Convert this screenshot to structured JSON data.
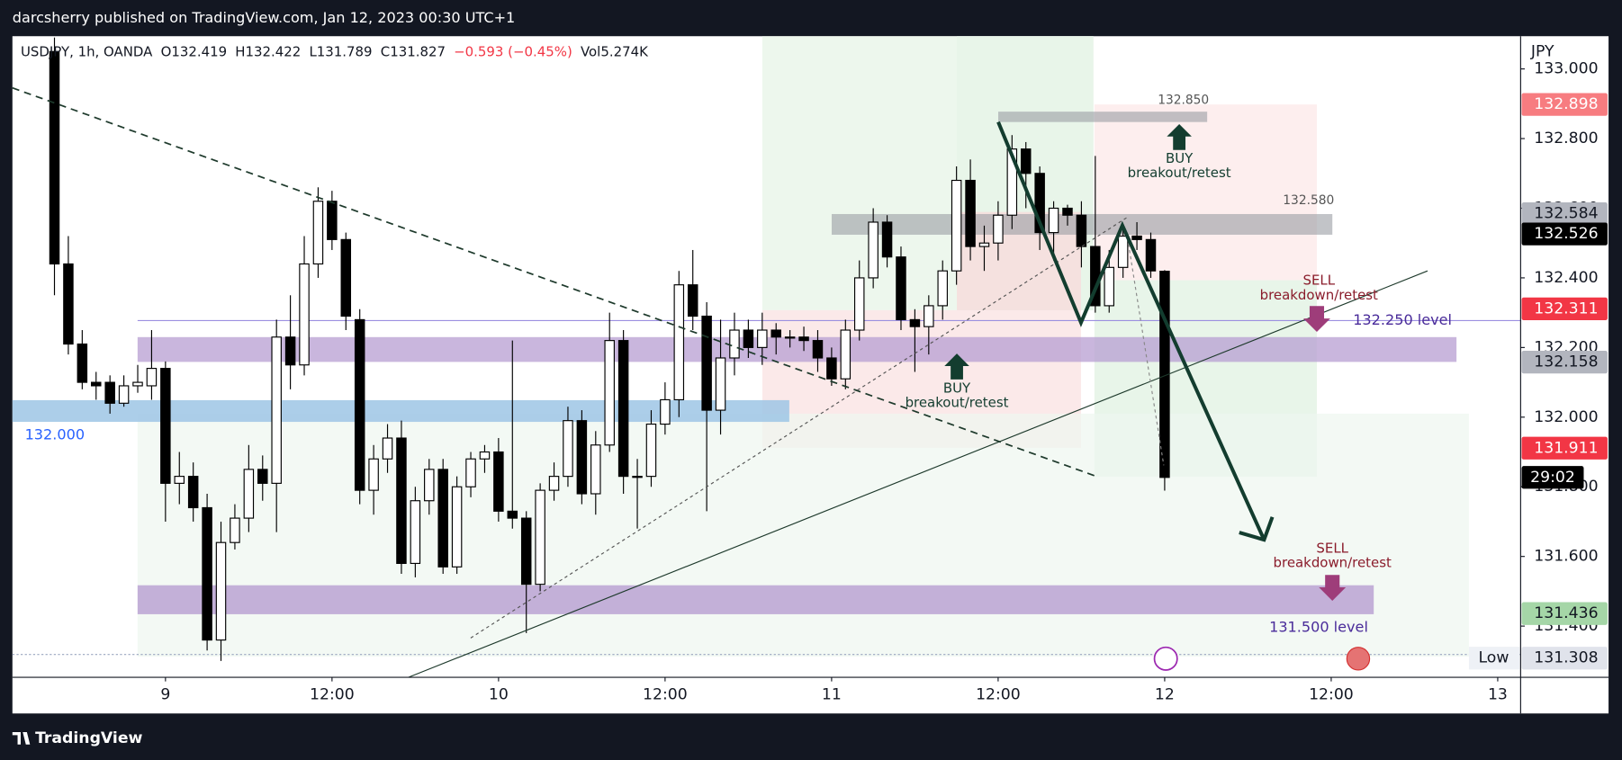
{
  "top_bar": {
    "text": "darcsherry published on TradingView.com, Jan 12, 2023 00:30 UTC+1"
  },
  "chart_data": {
    "type": "candlestick",
    "header": [
      "USDJPY, 1h, OANDA",
      "O132.419",
      "H132.422",
      "L131.789",
      "C131.827",
      "−0.593 (−0.45%)",
      "Vol5.274K"
    ],
    "currency": "JPY",
    "x": [
      -8,
      -7,
      -6,
      -5,
      -4,
      -3,
      -2,
      -1,
      0,
      1,
      2,
      3,
      4,
      5,
      6,
      7,
      8,
      9,
      10,
      11,
      12,
      13,
      14,
      15,
      16,
      17,
      18,
      19,
      20,
      21,
      22,
      23,
      24,
      25,
      26,
      27,
      28,
      29,
      30,
      31,
      32,
      33,
      34,
      35,
      36,
      37,
      38,
      39,
      40,
      41,
      42,
      43,
      44,
      45,
      46,
      47,
      48,
      49,
      50,
      51,
      52,
      53,
      54,
      55,
      56,
      57,
      58,
      59,
      60,
      61,
      62,
      63,
      64,
      65,
      66,
      67,
      68,
      69,
      70,
      71,
      72
    ],
    "open": [
      133.05,
      132.44,
      132.21,
      132.1,
      132.1,
      132.04,
      132.09,
      132.09,
      132.14,
      131.81,
      131.83,
      131.74,
      131.36,
      131.64,
      131.71,
      131.85,
      131.81,
      132.23,
      132.15,
      132.44,
      132.62,
      132.51,
      132.28,
      131.79,
      131.88,
      131.94,
      131.58,
      131.76,
      131.85,
      131.57,
      131.8,
      131.88,
      131.9,
      131.73,
      131.71,
      131.52,
      131.79,
      131.83,
      131.99,
      131.78,
      131.92,
      132.22,
      131.83,
      131.83,
      131.98,
      132.05,
      132.38,
      132.29,
      132.02,
      132.17,
      132.25,
      132.2,
      132.25,
      132.23,
      132.23,
      132.22,
      132.17,
      132.11,
      132.25,
      132.4,
      132.56,
      132.46,
      132.28,
      132.26,
      132.32,
      132.42,
      132.68,
      132.49,
      132.5,
      132.58,
      132.77,
      132.7,
      132.53,
      132.6,
      132.58,
      132.49,
      132.32,
      132.43,
      132.52,
      132.51,
      132.419
    ],
    "high": [
      133.09,
      132.52,
      132.25,
      132.13,
      132.12,
      132.12,
      132.15,
      132.25,
      132.16,
      131.9,
      131.87,
      131.78,
      131.7,
      131.75,
      131.92,
      131.89,
      132.28,
      132.35,
      132.52,
      132.66,
      132.65,
      132.53,
      132.31,
      131.92,
      131.98,
      131.99,
      131.8,
      131.88,
      131.88,
      131.83,
      131.9,
      131.92,
      131.94,
      132.22,
      131.73,
      131.81,
      131.87,
      132.03,
      132.02,
      131.96,
      132.3,
      132.25,
      131.88,
      132.02,
      132.1,
      132.42,
      132.48,
      132.33,
      132.28,
      132.3,
      132.28,
      132.3,
      132.27,
      132.25,
      132.26,
      132.25,
      132.2,
      132.28,
      132.45,
      132.6,
      132.58,
      132.49,
      132.31,
      132.35,
      132.45,
      132.72,
      132.74,
      132.55,
      132.62,
      132.81,
      132.79,
      132.72,
      132.62,
      132.61,
      132.62,
      132.75,
      132.48,
      132.55,
      132.56,
      132.53,
      132.422
    ],
    "low": [
      132.35,
      132.18,
      132.08,
      132.05,
      132.01,
      132.03,
      132.07,
      132.05,
      131.7,
      131.75,
      131.7,
      131.33,
      131.3,
      131.62,
      131.67,
      131.76,
      131.67,
      132.08,
      132.12,
      132.4,
      132.48,
      132.25,
      131.75,
      131.72,
      131.84,
      131.55,
      131.54,
      131.72,
      131.55,
      131.55,
      131.77,
      131.84,
      131.7,
      131.68,
      131.38,
      131.5,
      131.76,
      131.8,
      131.75,
      131.72,
      131.9,
      131.78,
      131.68,
      131.8,
      131.95,
      132.0,
      132.25,
      131.73,
      131.95,
      132.12,
      132.17,
      132.15,
      132.18,
      132.2,
      132.19,
      132.13,
      132.09,
      132.08,
      132.22,
      132.37,
      132.43,
      132.25,
      132.13,
      132.18,
      132.28,
      132.38,
      132.45,
      132.42,
      132.45,
      132.54,
      132.6,
      132.48,
      132.45,
      132.55,
      132.43,
      132.3,
      132.3,
      132.4,
      132.48,
      132.4,
      131.789
    ],
    "close": [
      132.44,
      132.21,
      132.1,
      132.09,
      132.04,
      132.09,
      132.1,
      132.14,
      131.81,
      131.83,
      131.74,
      131.36,
      131.64,
      131.71,
      131.85,
      131.81,
      132.23,
      132.15,
      132.44,
      132.62,
      132.51,
      132.29,
      131.79,
      131.88,
      131.94,
      131.58,
      131.76,
      131.85,
      131.57,
      131.8,
      131.88,
      131.9,
      131.73,
      131.71,
      131.52,
      131.79,
      131.83,
      131.99,
      131.78,
      131.92,
      132.22,
      131.83,
      131.83,
      131.98,
      132.05,
      132.38,
      132.29,
      132.02,
      132.17,
      132.25,
      132.2,
      132.25,
      132.23,
      132.23,
      132.22,
      132.17,
      132.11,
      132.25,
      132.4,
      132.56,
      132.46,
      132.28,
      132.26,
      132.32,
      132.42,
      132.68,
      132.49,
      132.5,
      132.58,
      132.77,
      132.7,
      132.53,
      132.6,
      132.58,
      132.49,
      132.32,
      132.43,
      132.52,
      132.51,
      132.42,
      131.827
    ],
    "up_color": "#ffffff",
    "down_color": "#000000",
    "xlim": [
      -11.03,
      97.65
    ],
    "xticks": [
      {
        "value": 0,
        "label": "9"
      },
      {
        "value": 12,
        "label": "12:00"
      },
      {
        "value": 24,
        "label": "10"
      },
      {
        "value": 36,
        "label": "12:00"
      },
      {
        "value": 48,
        "label": "11"
      },
      {
        "value": 60,
        "label": "12:00"
      },
      {
        "value": 72,
        "label": "12"
      },
      {
        "value": 84,
        "label": "12:00"
      },
      {
        "value": 96,
        "label": "13"
      }
    ],
    "ylim": [
      131.253,
      133.094
    ],
    "yticks": [
      {
        "value": 133,
        "label": "133.000"
      },
      {
        "value": 132.8,
        "label": "132.800"
      },
      {
        "value": 132.6,
        "label": "132.600"
      },
      {
        "value": 132.4,
        "label": "132.400"
      },
      {
        "value": 132.2,
        "label": "132.200"
      },
      {
        "value": 132,
        "label": "132.000"
      },
      {
        "value": 131.8,
        "label": "131.800"
      },
      {
        "value": 131.6,
        "label": "131.600"
      },
      {
        "value": 131.4,
        "label": "131.400"
      }
    ],
    "price_tags": [
      {
        "value": 132.898,
        "color": "#f77c80",
        "text_color": "#ffffff"
      },
      {
        "value": 132.584,
        "color": "#b2b5be",
        "text_color": "#131722"
      },
      {
        "value": 132.526,
        "color": "#000000",
        "text_color": "#ffffff"
      },
      {
        "value": 132.311,
        "color": "#f23645",
        "text_color": "#ffffff"
      },
      {
        "value": 132.158,
        "color": "#b2b5be",
        "text_color": "#131722"
      },
      {
        "value": 131.911,
        "color": "#f23645",
        "text_color": "#ffffff"
      },
      {
        "value": 131.436,
        "color": "#a5d6a7",
        "text_color": "#131722"
      },
      {
        "value": 131.308,
        "color": "#e0e3eb",
        "text_color": "#131722"
      }
    ],
    "countdown": "29:02",
    "low_label": "Low",
    "annotations": {
      "level_132000": "132.000",
      "level_132250": "132.250 level",
      "level_131500": "131.500 level",
      "level_132850": "132.850",
      "level_132580": "132.580",
      "buy_1": "BUY",
      "buy_1_sub": "breakout/retest",
      "buy_2": "BUY",
      "buy_2_sub": "breakout/retest",
      "sell_1": "SELL",
      "sell_1_sub": "breakdown/retest",
      "sell_2": "SELL",
      "sell_2_sub": "breakdown/retest"
    }
  },
  "footer": {
    "brand": "TradingView"
  }
}
